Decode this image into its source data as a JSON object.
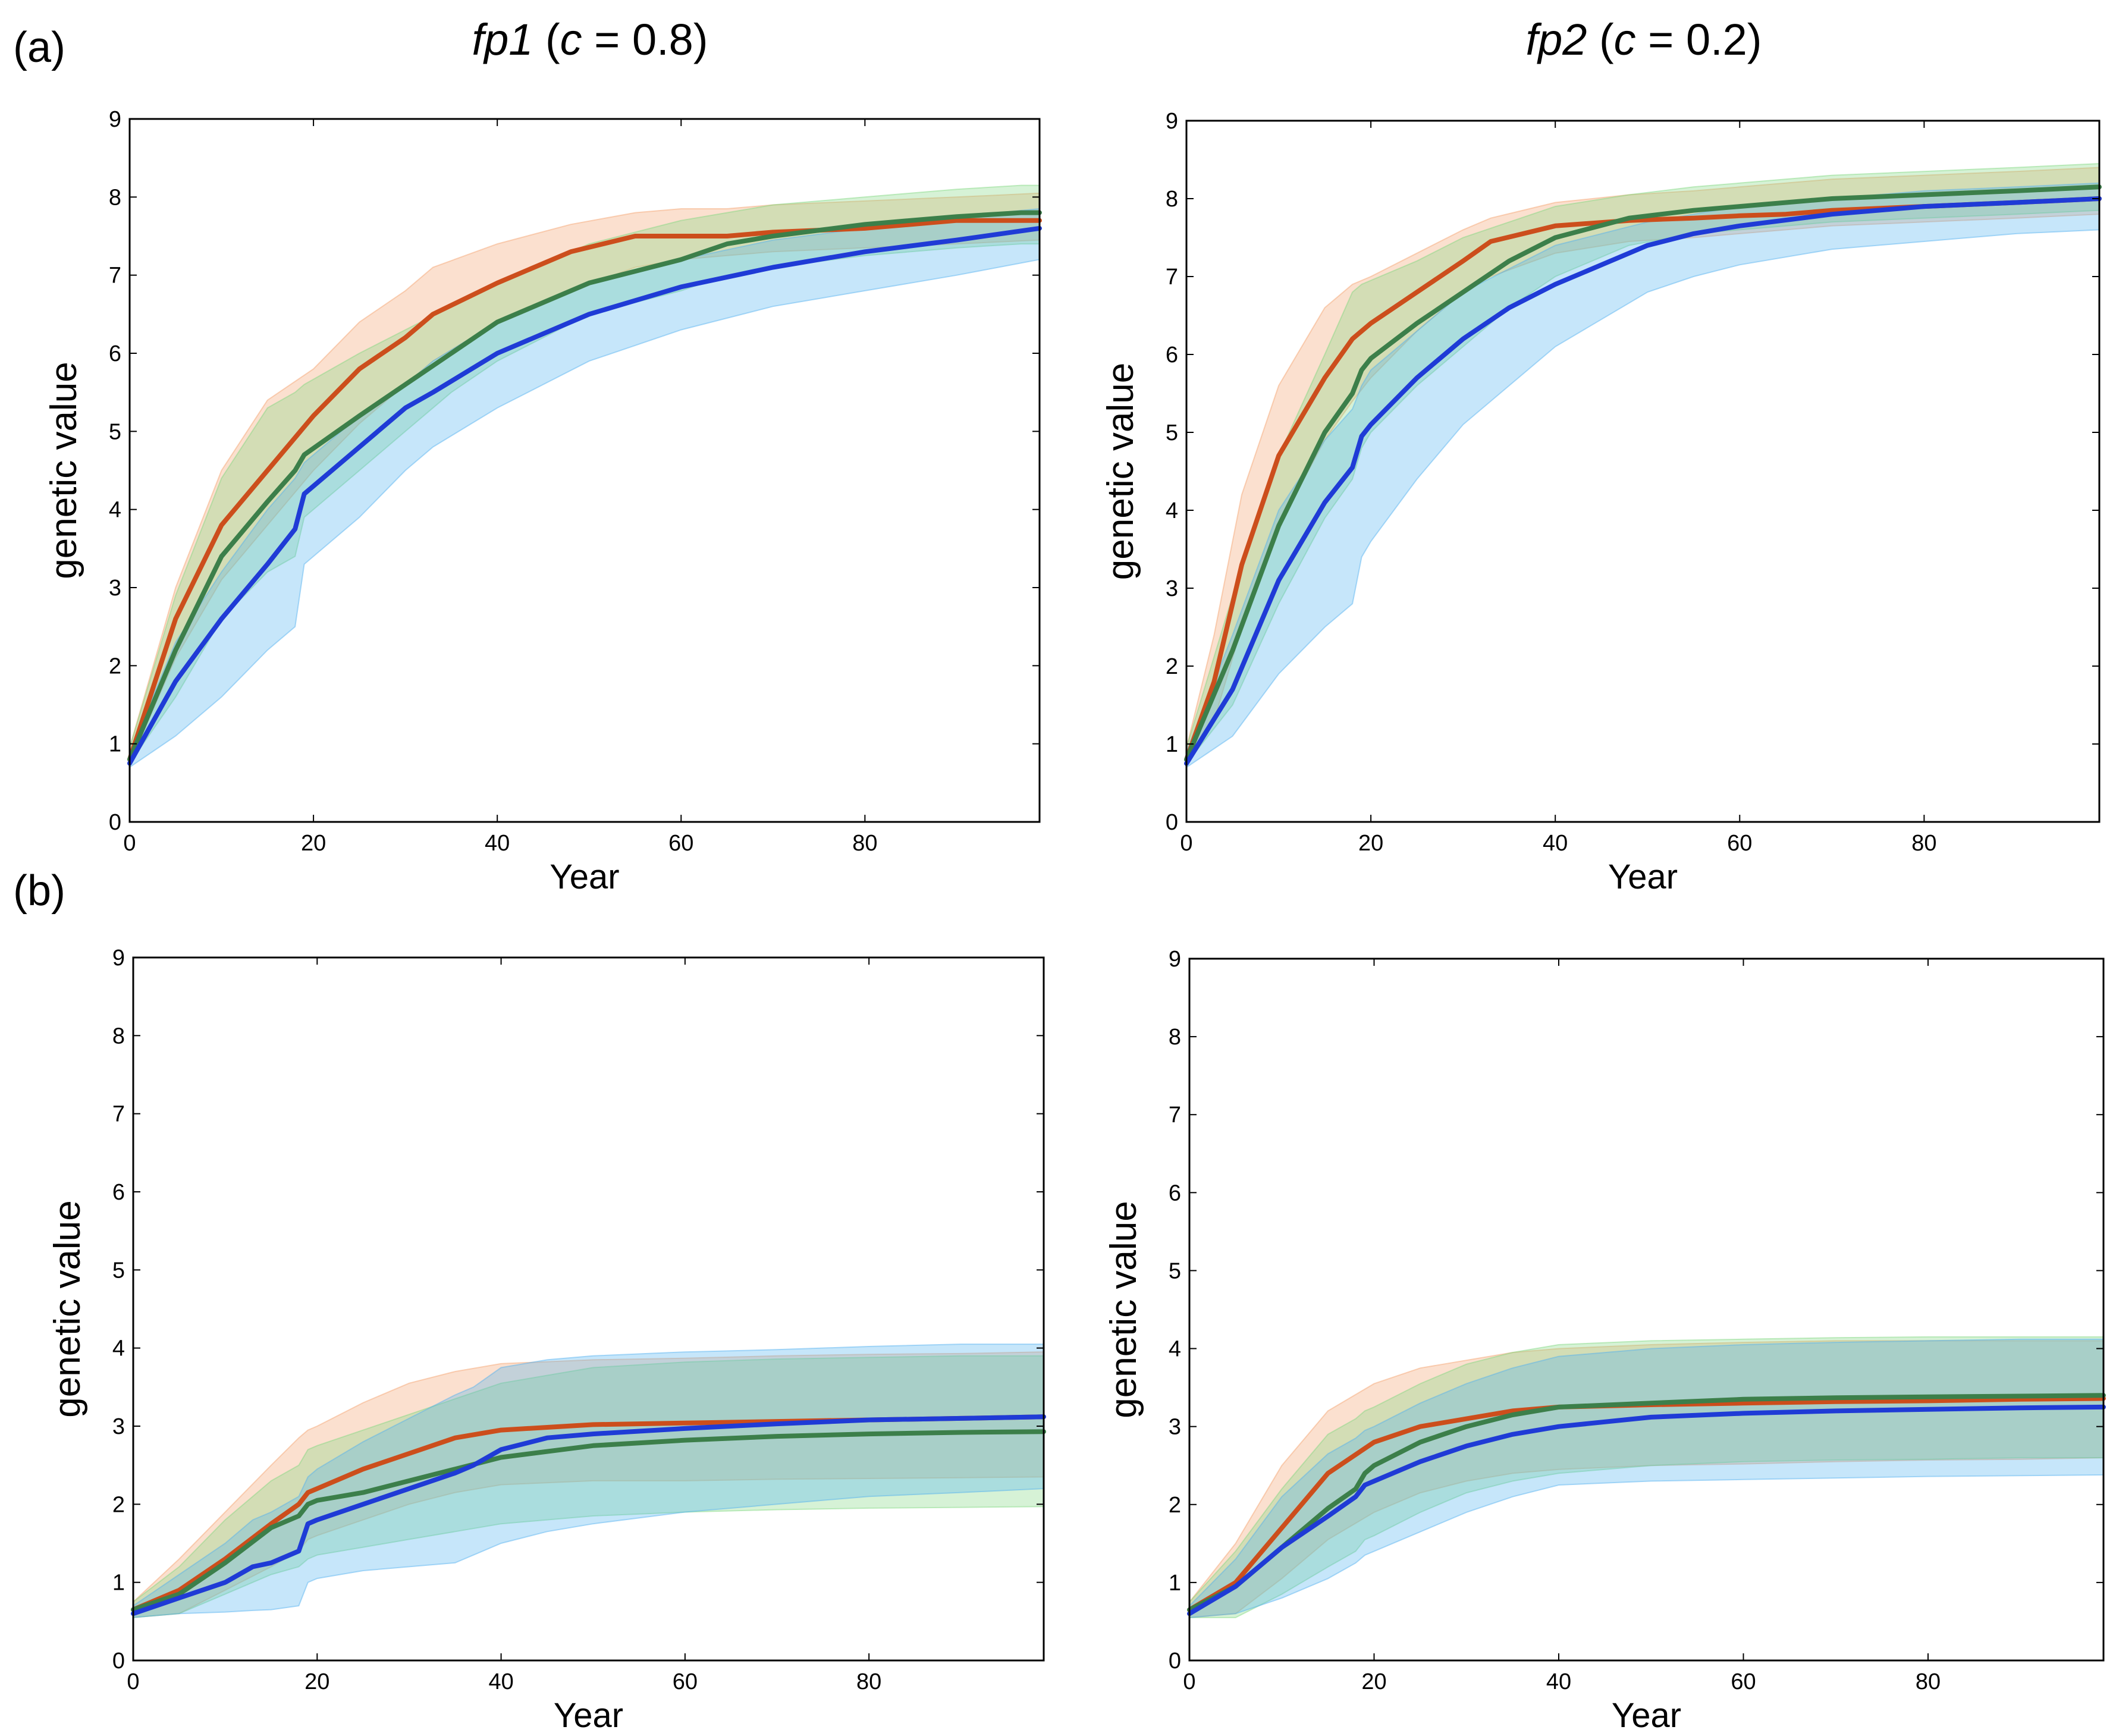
{
  "figure": {
    "panel_labels": [
      "(a)",
      "(b)"
    ],
    "col_titles": [
      {
        "name": "fp1",
        "pre": " (",
        "var": "c",
        "post": " = 0.8)"
      },
      {
        "name": "fp2",
        "pre": " (",
        "var": "c",
        "post": " = 0.2)"
      }
    ],
    "colors": {
      "orange": "#cc4e1c",
      "green": "#3c7f4a",
      "blue": "#1f3bd6",
      "orange_band": "#f4a06a",
      "green_band": "#7ed67e",
      "blue_band": "#4fb0f0"
    }
  },
  "chart_data": [
    {
      "id": "a-fp1",
      "type": "line",
      "title": "fp1 (c = 0.8)",
      "xlabel": "Year",
      "ylabel": "genetic value",
      "xlim": [
        0,
        99
      ],
      "ylim": [
        0,
        9
      ],
      "xticks": [
        0,
        20,
        40,
        60,
        80
      ],
      "yticks": [
        0,
        1,
        2,
        3,
        4,
        5,
        6,
        7,
        8,
        9
      ],
      "series": [
        {
          "name": "orange",
          "color": "orange",
          "x": [
            0,
            5,
            10,
            15,
            20,
            25,
            30,
            33,
            40,
            48,
            55,
            60,
            65,
            70,
            80,
            90,
            99
          ],
          "y": [
            0.8,
            2.6,
            3.8,
            4.5,
            5.2,
            5.8,
            6.2,
            6.5,
            6.9,
            7.3,
            7.5,
            7.5,
            7.5,
            7.55,
            7.6,
            7.7,
            7.7
          ],
          "band_upper": [
            0.95,
            3.0,
            4.5,
            5.4,
            5.8,
            6.4,
            6.8,
            7.1,
            7.4,
            7.65,
            7.8,
            7.85,
            7.85,
            7.9,
            7.95,
            8.0,
            8.05
          ],
          "band_lower": [
            0.75,
            2.1,
            3.1,
            3.8,
            4.5,
            5.1,
            5.6,
            5.9,
            6.4,
            6.8,
            7.1,
            7.2,
            7.25,
            7.3,
            7.35,
            7.4,
            7.45
          ]
        },
        {
          "name": "green",
          "color": "green",
          "x": [
            0,
            5,
            10,
            15,
            18,
            19,
            25,
            30,
            35,
            40,
            50,
            60,
            65,
            70,
            80,
            90,
            97,
            99
          ],
          "y": [
            0.8,
            2.2,
            3.4,
            4.1,
            4.5,
            4.7,
            5.2,
            5.6,
            6.0,
            6.4,
            6.9,
            7.2,
            7.4,
            7.5,
            7.65,
            7.75,
            7.8,
            7.8
          ],
          "band_upper": [
            0.95,
            2.9,
            4.4,
            5.3,
            5.5,
            5.6,
            6.0,
            6.3,
            6.6,
            6.9,
            7.4,
            7.7,
            7.8,
            7.9,
            8.0,
            8.1,
            8.15,
            8.15
          ],
          "band_lower": [
            0.75,
            1.6,
            2.6,
            3.2,
            3.4,
            3.9,
            4.5,
            5.0,
            5.5,
            5.9,
            6.5,
            6.8,
            7.0,
            7.1,
            7.25,
            7.35,
            7.4,
            7.4
          ]
        },
        {
          "name": "blue",
          "color": "blue",
          "x": [
            0,
            5,
            10,
            15,
            18,
            19,
            25,
            30,
            33,
            40,
            50,
            60,
            70,
            80,
            90,
            99
          ],
          "y": [
            0.75,
            1.8,
            2.6,
            3.3,
            3.75,
            4.2,
            4.8,
            5.3,
            5.5,
            6.0,
            6.5,
            6.85,
            7.1,
            7.3,
            7.45,
            7.6
          ],
          "band_upper": [
            0.9,
            2.3,
            3.2,
            4.0,
            4.4,
            4.6,
            5.2,
            5.6,
            5.9,
            6.4,
            6.9,
            7.2,
            7.45,
            7.6,
            7.75,
            7.85
          ],
          "band_lower": [
            0.7,
            1.1,
            1.6,
            2.2,
            2.5,
            3.3,
            3.9,
            4.5,
            4.8,
            5.3,
            5.9,
            6.3,
            6.6,
            6.8,
            7.0,
            7.2
          ]
        }
      ]
    },
    {
      "id": "a-fp2",
      "type": "line",
      "title": "fp2 (c = 0.2)",
      "xlabel": "Year",
      "ylabel": "genetic value",
      "xlim": [
        0,
        99
      ],
      "ylim": [
        0,
        9
      ],
      "xticks": [
        0,
        20,
        40,
        60,
        80
      ],
      "yticks": [
        0,
        1,
        2,
        3,
        4,
        5,
        6,
        7,
        8,
        9
      ],
      "series": [
        {
          "name": "orange",
          "color": "orange",
          "x": [
            0,
            3,
            6,
            10,
            15,
            18,
            20,
            25,
            30,
            33,
            40,
            48,
            55,
            60,
            65,
            70,
            80,
            90,
            99
          ],
          "y": [
            0.8,
            1.8,
            3.3,
            4.7,
            5.7,
            6.2,
            6.4,
            6.8,
            7.2,
            7.45,
            7.65,
            7.72,
            7.75,
            7.78,
            7.8,
            7.85,
            7.9,
            7.95,
            8.0
          ],
          "band_upper": [
            0.95,
            2.4,
            4.2,
            5.6,
            6.6,
            6.9,
            7.0,
            7.3,
            7.6,
            7.75,
            7.95,
            8.05,
            8.1,
            8.15,
            8.2,
            8.25,
            8.3,
            8.35,
            8.4
          ],
          "band_lower": [
            0.75,
            1.3,
            2.5,
            3.8,
            4.9,
            5.4,
            5.7,
            6.3,
            6.8,
            7.0,
            7.3,
            7.45,
            7.5,
            7.55,
            7.6,
            7.65,
            7.7,
            7.75,
            7.8
          ]
        },
        {
          "name": "green",
          "color": "green",
          "x": [
            0,
            5,
            10,
            15,
            18,
            19,
            20,
            25,
            30,
            35,
            40,
            48,
            55,
            60,
            70,
            80,
            90,
            99
          ],
          "y": [
            0.8,
            2.2,
            3.8,
            5.0,
            5.5,
            5.8,
            5.95,
            6.4,
            6.8,
            7.2,
            7.5,
            7.75,
            7.85,
            7.9,
            8.0,
            8.05,
            8.1,
            8.15
          ],
          "band_upper": [
            0.95,
            2.9,
            4.7,
            6.0,
            6.8,
            6.9,
            6.95,
            7.2,
            7.5,
            7.7,
            7.9,
            8.05,
            8.15,
            8.2,
            8.3,
            8.35,
            8.4,
            8.45
          ],
          "band_lower": [
            0.75,
            1.5,
            2.8,
            3.9,
            4.4,
            4.8,
            5.0,
            5.6,
            6.1,
            6.6,
            7.0,
            7.4,
            7.55,
            7.6,
            7.7,
            7.75,
            7.8,
            7.85
          ]
        },
        {
          "name": "blue",
          "color": "blue",
          "x": [
            0,
            5,
            10,
            15,
            18,
            19,
            20,
            25,
            30,
            35,
            40,
            50,
            55,
            60,
            70,
            80,
            90,
            99
          ],
          "y": [
            0.75,
            1.7,
            3.1,
            4.1,
            4.55,
            4.95,
            5.1,
            5.7,
            6.2,
            6.6,
            6.9,
            7.4,
            7.55,
            7.65,
            7.8,
            7.9,
            7.95,
            8.0
          ],
          "band_upper": [
            0.9,
            2.4,
            4.0,
            4.9,
            5.3,
            5.6,
            5.8,
            6.3,
            6.8,
            7.1,
            7.4,
            7.7,
            7.8,
            7.9,
            8.0,
            8.1,
            8.15,
            8.2
          ],
          "band_lower": [
            0.7,
            1.1,
            1.9,
            2.5,
            2.8,
            3.4,
            3.6,
            4.4,
            5.1,
            5.6,
            6.1,
            6.8,
            7.0,
            7.15,
            7.35,
            7.45,
            7.55,
            7.6
          ]
        }
      ]
    },
    {
      "id": "b-fp1",
      "type": "line",
      "title": "",
      "xlabel": "Year",
      "ylabel": "genetic value",
      "xlim": [
        0,
        99
      ],
      "ylim": [
        0,
        9
      ],
      "xticks": [
        0,
        20,
        40,
        60,
        80
      ],
      "yticks": [
        0,
        1,
        2,
        3,
        4,
        5,
        6,
        7,
        8,
        9
      ],
      "series": [
        {
          "name": "orange",
          "color": "orange",
          "x": [
            0,
            5,
            10,
            15,
            18,
            19,
            20,
            25,
            30,
            35,
            40,
            50,
            60,
            70,
            80,
            90,
            99
          ],
          "y": [
            0.65,
            0.9,
            1.3,
            1.75,
            2.0,
            2.15,
            2.2,
            2.45,
            2.65,
            2.85,
            2.95,
            3.02,
            3.04,
            3.06,
            3.08,
            3.1,
            3.12
          ],
          "band_upper": [
            0.75,
            1.3,
            1.9,
            2.5,
            2.85,
            2.95,
            3.0,
            3.3,
            3.55,
            3.7,
            3.8,
            3.85,
            3.87,
            3.9,
            3.92,
            3.93,
            3.95
          ],
          "band_lower": [
            0.55,
            0.6,
            0.9,
            1.2,
            1.4,
            1.55,
            1.6,
            1.8,
            2.0,
            2.15,
            2.25,
            2.3,
            2.3,
            2.32,
            2.33,
            2.34,
            2.35
          ]
        },
        {
          "name": "green",
          "color": "green",
          "x": [
            0,
            5,
            10,
            15,
            18,
            19,
            20,
            25,
            30,
            35,
            40,
            50,
            60,
            70,
            80,
            90,
            99
          ],
          "y": [
            0.65,
            0.85,
            1.25,
            1.7,
            1.85,
            2.0,
            2.05,
            2.15,
            2.3,
            2.45,
            2.6,
            2.75,
            2.82,
            2.87,
            2.9,
            2.92,
            2.93
          ],
          "band_upper": [
            0.75,
            1.2,
            1.8,
            2.3,
            2.5,
            2.7,
            2.75,
            2.95,
            3.15,
            3.35,
            3.55,
            3.75,
            3.82,
            3.86,
            3.88,
            3.9,
            3.9
          ],
          "band_lower": [
            0.55,
            0.6,
            0.85,
            1.1,
            1.2,
            1.3,
            1.35,
            1.45,
            1.55,
            1.65,
            1.75,
            1.85,
            1.9,
            1.93,
            1.95,
            1.96,
            1.97
          ]
        },
        {
          "name": "blue",
          "color": "blue",
          "x": [
            0,
            5,
            10,
            13,
            15,
            18,
            19,
            20,
            25,
            30,
            35,
            37,
            40,
            45,
            50,
            60,
            70,
            80,
            90,
            99
          ],
          "y": [
            0.6,
            0.8,
            1.0,
            1.2,
            1.25,
            1.4,
            1.75,
            1.8,
            2.0,
            2.2,
            2.4,
            2.5,
            2.7,
            2.85,
            2.9,
            2.97,
            3.03,
            3.08,
            3.1,
            3.12
          ],
          "band_upper": [
            0.7,
            1.1,
            1.5,
            1.8,
            1.9,
            2.1,
            2.35,
            2.45,
            2.8,
            3.1,
            3.4,
            3.5,
            3.75,
            3.85,
            3.9,
            3.95,
            3.98,
            4.02,
            4.05,
            4.05
          ],
          "band_lower": [
            0.55,
            0.6,
            0.62,
            0.64,
            0.65,
            0.7,
            1.0,
            1.05,
            1.15,
            1.2,
            1.25,
            1.35,
            1.5,
            1.65,
            1.75,
            1.9,
            2.0,
            2.1,
            2.15,
            2.2
          ]
        }
      ]
    },
    {
      "id": "b-fp2",
      "type": "line",
      "title": "",
      "xlabel": "Year",
      "ylabel": "genetic value",
      "xlim": [
        0,
        99
      ],
      "ylim": [
        0,
        9
      ],
      "xticks": [
        0,
        20,
        40,
        60,
        80
      ],
      "yticks": [
        0,
        1,
        2,
        3,
        4,
        5,
        6,
        7,
        8,
        9
      ],
      "series": [
        {
          "name": "orange",
          "color": "orange",
          "x": [
            0,
            5,
            10,
            15,
            20,
            25,
            30,
            35,
            40,
            50,
            60,
            70,
            80,
            90,
            99
          ],
          "y": [
            0.65,
            1.0,
            1.7,
            2.4,
            2.8,
            3.0,
            3.1,
            3.2,
            3.25,
            3.28,
            3.3,
            3.32,
            3.33,
            3.35,
            3.36
          ],
          "band_upper": [
            0.75,
            1.5,
            2.5,
            3.2,
            3.55,
            3.75,
            3.85,
            3.95,
            4.0,
            4.05,
            4.08,
            4.1,
            4.1,
            4.1,
            4.1
          ],
          "band_lower": [
            0.55,
            0.6,
            1.05,
            1.55,
            1.9,
            2.15,
            2.3,
            2.4,
            2.45,
            2.5,
            2.52,
            2.55,
            2.57,
            2.58,
            2.6
          ]
        },
        {
          "name": "green",
          "color": "green",
          "x": [
            0,
            5,
            10,
            15,
            18,
            19,
            20,
            25,
            30,
            35,
            40,
            50,
            60,
            70,
            80,
            90,
            99
          ],
          "y": [
            0.65,
            0.95,
            1.45,
            1.95,
            2.2,
            2.4,
            2.5,
            2.8,
            3.0,
            3.15,
            3.25,
            3.3,
            3.35,
            3.37,
            3.38,
            3.39,
            3.4
          ],
          "band_upper": [
            0.75,
            1.4,
            2.2,
            2.9,
            3.1,
            3.2,
            3.25,
            3.55,
            3.8,
            3.95,
            4.05,
            4.1,
            4.12,
            4.14,
            4.15,
            4.15,
            4.15
          ],
          "band_lower": [
            0.55,
            0.55,
            0.85,
            1.2,
            1.4,
            1.55,
            1.6,
            1.9,
            2.15,
            2.3,
            2.4,
            2.5,
            2.55,
            2.57,
            2.58,
            2.6,
            2.6
          ]
        },
        {
          "name": "blue",
          "color": "blue",
          "x": [
            0,
            5,
            10,
            15,
            18,
            19,
            20,
            25,
            30,
            35,
            40,
            50,
            60,
            70,
            80,
            90,
            99
          ],
          "y": [
            0.6,
            0.95,
            1.45,
            1.85,
            2.1,
            2.25,
            2.3,
            2.55,
            2.75,
            2.9,
            3.0,
            3.12,
            3.17,
            3.2,
            3.22,
            3.24,
            3.25
          ],
          "band_upper": [
            0.7,
            1.3,
            2.1,
            2.65,
            2.85,
            2.95,
            3.0,
            3.3,
            3.55,
            3.75,
            3.9,
            4.0,
            4.05,
            4.08,
            4.1,
            4.12,
            4.12
          ],
          "band_lower": [
            0.55,
            0.6,
            0.8,
            1.05,
            1.25,
            1.35,
            1.4,
            1.65,
            1.9,
            2.1,
            2.25,
            2.3,
            2.32,
            2.34,
            2.36,
            2.37,
            2.38
          ]
        }
      ]
    }
  ]
}
